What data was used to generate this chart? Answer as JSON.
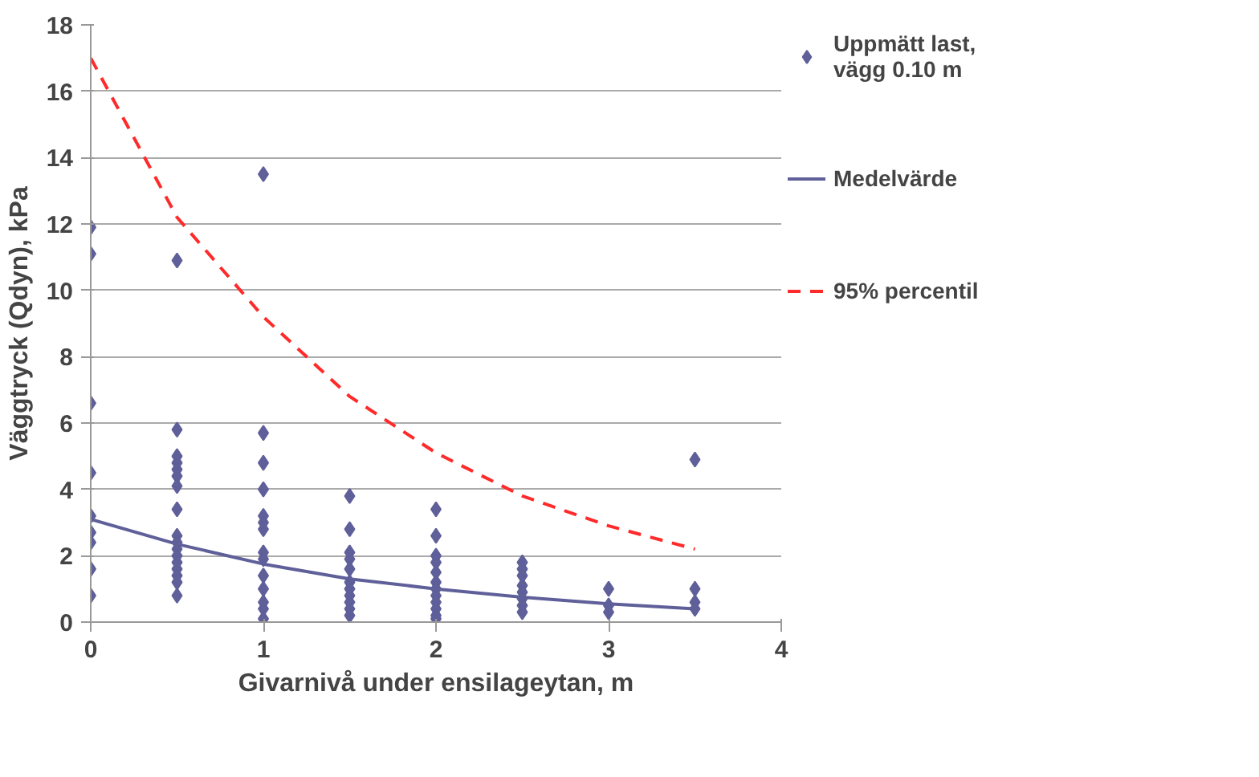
{
  "chart_data": {
    "type": "scatter",
    "xlabel": "Givarnivå under ensilageytan, m",
    "ylabel": "Väggtryck (Qdyn), kPa",
    "xlim": [
      0,
      4
    ],
    "xticks": [
      0,
      1,
      2,
      3,
      4
    ],
    "ylim": [
      0,
      18
    ],
    "yticks": [
      0,
      2,
      4,
      6,
      8,
      10,
      12,
      14,
      16,
      18
    ],
    "grid": "y",
    "legend": "right",
    "series": [
      {
        "name": "Uppmätt last, vägg 0.10 m",
        "marker": "diamond",
        "color": "#5f5f9a",
        "x": [
          0,
          0,
          0,
          0,
          0,
          0,
          0,
          0,
          0,
          0.5,
          0.5,
          0.5,
          0.5,
          0.5,
          0.5,
          0.5,
          0.5,
          0.5,
          0.5,
          0.5,
          0.5,
          0.5,
          0.5,
          0.5,
          0.5,
          0.5,
          1,
          1,
          1,
          1,
          1,
          1,
          1,
          1,
          1,
          1,
          1,
          1,
          1,
          1,
          1.5,
          1.5,
          1.5,
          1.5,
          1.5,
          1.5,
          1.5,
          1.5,
          1.5,
          1.5,
          1.5,
          2,
          2,
          2,
          2,
          2,
          2,
          2,
          2,
          2,
          2,
          2,
          2,
          2.5,
          2.5,
          2.5,
          2.5,
          2.5,
          2.5,
          2.5,
          2.5,
          3,
          3,
          3,
          3.5,
          3.5,
          3.5,
          3.5
        ],
        "values": [
          11.9,
          11.1,
          6.6,
          4.5,
          3.2,
          2.7,
          2.4,
          1.6,
          0.8,
          10.9,
          5.8,
          5.0,
          4.8,
          4.6,
          4.4,
          4.1,
          3.4,
          2.6,
          2.4,
          2.2,
          2.0,
          1.8,
          1.6,
          1.4,
          1.2,
          0.8,
          13.5,
          5.7,
          4.8,
          4.0,
          3.2,
          3.0,
          2.8,
          2.1,
          1.9,
          1.4,
          1.0,
          0.6,
          0.4,
          0.1,
          3.8,
          2.8,
          2.1,
          1.9,
          1.6,
          1.2,
          1.0,
          0.8,
          0.6,
          0.4,
          0.2,
          3.4,
          2.6,
          2.0,
          1.8,
          1.5,
          1.2,
          1.0,
          0.8,
          0.6,
          0.4,
          0.2,
          0.1,
          1.8,
          1.6,
          1.4,
          1.1,
          0.9,
          0.7,
          0.5,
          0.3,
          1.0,
          0.5,
          0.3,
          4.9,
          1.0,
          0.6,
          0.4
        ]
      },
      {
        "name": "Medelvärde",
        "type": "line",
        "color": "#5f5f9a",
        "line_style": "solid",
        "x": [
          0,
          0.5,
          1,
          1.5,
          2,
          2.5,
          3,
          3.5
        ],
        "values": [
          3.1,
          2.35,
          1.75,
          1.3,
          1.0,
          0.75,
          0.55,
          0.4
        ]
      },
      {
        "name": "95% percentil",
        "type": "line",
        "color": "#ff2a2a",
        "line_style": "dashed",
        "x": [
          0,
          0.5,
          1,
          1.5,
          2,
          2.5,
          3,
          3.5
        ],
        "values": [
          17.0,
          12.2,
          9.2,
          6.8,
          5.1,
          3.8,
          2.9,
          2.2
        ]
      }
    ]
  }
}
